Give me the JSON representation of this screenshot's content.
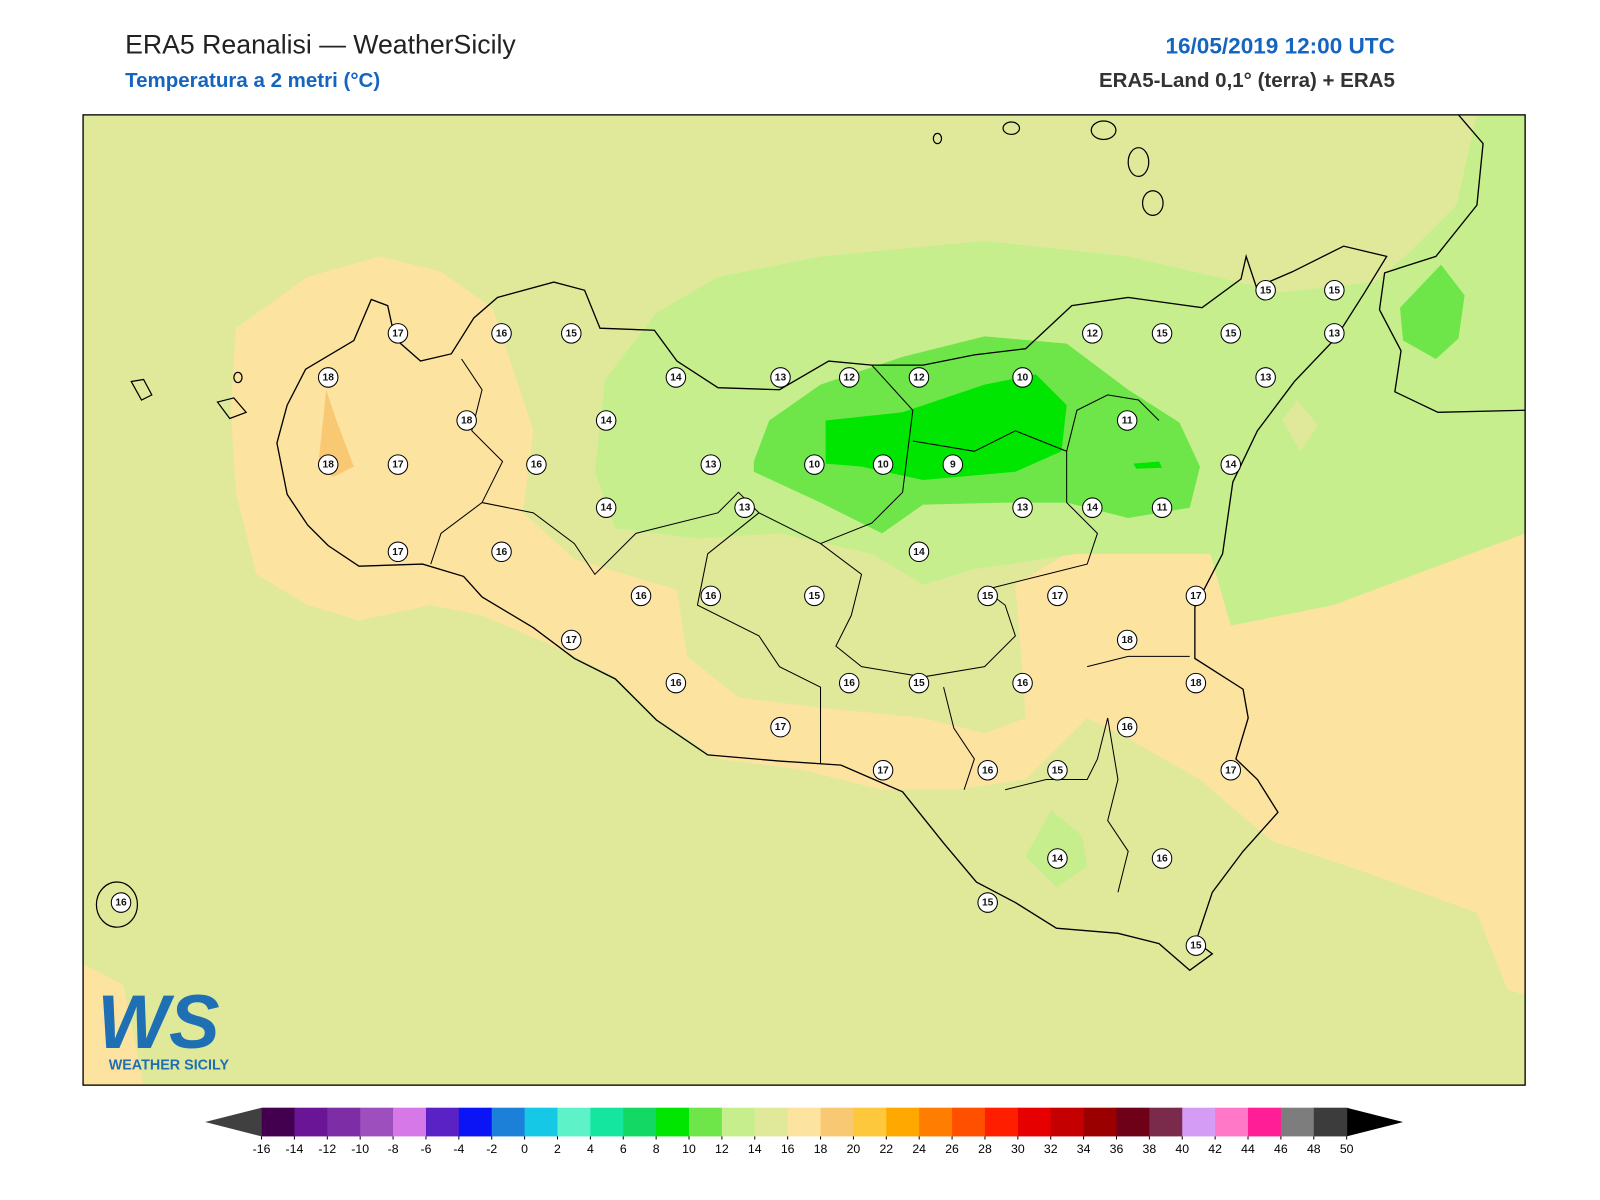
{
  "header": {
    "title": "ERA5 Reanalisi — WeatherSicily",
    "subtitle": "Temperatura a 2 metri (°C)",
    "date": "16/05/2019 12:00 UTC",
    "source": "ERA5-Land 0,1° (terra) + ERA5"
  },
  "map_data": {
    "stations": [
      17,
      16,
      15,
      18,
      18,
      14,
      18,
      17,
      16,
      14,
      13,
      12,
      12,
      10,
      12,
      15,
      15,
      15,
      15,
      13,
      13,
      11,
      14,
      13,
      10,
      10,
      9,
      14,
      13,
      13,
      14,
      11,
      17,
      16,
      14,
      16,
      16,
      15,
      15,
      17,
      17,
      17,
      18,
      16,
      16,
      15,
      16,
      18,
      17,
      16,
      17,
      16,
      15,
      17,
      14,
      16,
      15,
      15,
      16
    ],
    "colorbar": {
      "ticks": [
        -16,
        -14,
        -12,
        -10,
        -8,
        -6,
        -4,
        -2,
        0,
        2,
        4,
        6,
        8,
        10,
        12,
        14,
        16,
        18,
        20,
        22,
        24,
        26,
        28,
        30,
        32,
        34,
        36,
        38,
        40,
        42,
        44,
        46,
        48,
        50
      ],
      "colors": [
        "#42004f",
        "#6a1596",
        "#7d2ea6",
        "#9c4fbd",
        "#d678e8",
        "#5a22c5",
        "#0a14f5",
        "#1c7fd8",
        "#14c8e6",
        "#5ef2c8",
        "#14e6a0",
        "#14d864",
        "#00e600",
        "#6ee64a",
        "#c6ee8c",
        "#e0e99a",
        "#fde3a0",
        "#f9c873",
        "#fdc83c",
        "#ffa800",
        "#ff7d00",
        "#ff5000",
        "#ff1e00",
        "#e60000",
        "#c40000",
        "#9a0000",
        "#6e0018",
        "#7a2a4a",
        "#d49cf5",
        "#ff78c8",
        "#ff1e96",
        "#7d7d7d",
        "#3c3c3c"
      ],
      "under_color": "#404040",
      "over_color": "#000000"
    }
  },
  "logo": {
    "text": "WS",
    "subtext": "WEATHER SICILY"
  }
}
